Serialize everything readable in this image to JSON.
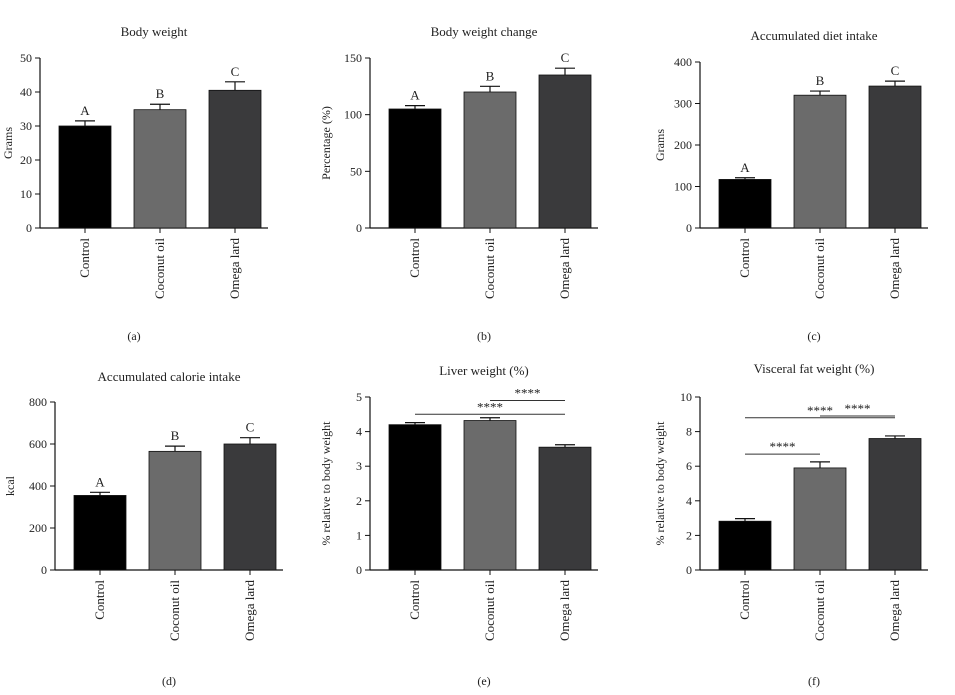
{
  "chart_data": [
    {
      "type": "bar",
      "panel_label": "(a)",
      "title": "Body weight",
      "ylabel": "Grams",
      "ylim": [
        0,
        50
      ],
      "yticks": [
        0,
        10,
        20,
        30,
        40,
        50
      ],
      "categories": [
        "Control",
        "Coconut oil",
        "Omega lard"
      ],
      "values": [
        30,
        34.8,
        40.5
      ],
      "errors": [
        1.5,
        1.6,
        2.5
      ],
      "letters": [
        "A",
        "B",
        "C"
      ],
      "significance": []
    },
    {
      "type": "bar",
      "panel_label": "(b)",
      "title": "Body weight change",
      "ylabel": "Percentage (%)",
      "ylim": [
        0,
        150
      ],
      "yticks": [
        0,
        50,
        100,
        150
      ],
      "categories": [
        "Control",
        "Coconut oil",
        "Omega lard"
      ],
      "values": [
        105,
        120,
        135
      ],
      "errors": [
        3,
        5,
        6
      ],
      "letters": [
        "A",
        "B",
        "C"
      ],
      "significance": []
    },
    {
      "type": "bar",
      "panel_label": "(c)",
      "title": "Accumulated diet intake",
      "ylabel": "Grams",
      "ylim": [
        0,
        400
      ],
      "yticks": [
        0,
        100,
        200,
        300,
        400
      ],
      "categories": [
        "Control",
        "Coconut oil",
        "Omega lard"
      ],
      "values": [
        117,
        320,
        342
      ],
      "errors": [
        4,
        10,
        12
      ],
      "letters": [
        "A",
        "B",
        "C"
      ],
      "significance": []
    },
    {
      "type": "bar",
      "panel_label": "(d)",
      "title": "Accumulated calorie intake",
      "ylabel": "kcal",
      "ylim": [
        0,
        800
      ],
      "yticks": [
        0,
        200,
        400,
        600,
        800
      ],
      "categories": [
        "Control",
        "Coconut oil",
        "Omega lard"
      ],
      "values": [
        355,
        565,
        600
      ],
      "errors": [
        15,
        25,
        30
      ],
      "letters": [
        "A",
        "B",
        "C"
      ],
      "significance": []
    },
    {
      "type": "bar",
      "panel_label": "(e)",
      "title": "Liver weight (%)",
      "ylabel": "% relative to body weight",
      "ylim": [
        0,
        5
      ],
      "yticks": [
        0,
        1,
        2,
        3,
        4,
        5
      ],
      "categories": [
        "Control",
        "Coconut oil",
        "Omega lard"
      ],
      "values": [
        4.2,
        4.32,
        3.55
      ],
      "errors": [
        0.06,
        0.08,
        0.07
      ],
      "letters": [],
      "significance": [
        {
          "from": 1,
          "to": 2,
          "y": 4.9,
          "label": "****"
        },
        {
          "from": 0,
          "to": 2,
          "y": 4.5,
          "label": "****"
        }
      ]
    },
    {
      "type": "bar",
      "panel_label": "(f)",
      "title": "Visceral fat weight (%)",
      "ylabel": "% relative to body weight",
      "ylim": [
        0,
        10
      ],
      "yticks": [
        0,
        2,
        4,
        6,
        8,
        10
      ],
      "categories": [
        "Control",
        "Coconut oil",
        "Omega lard"
      ],
      "values": [
        2.82,
        5.9,
        7.6
      ],
      "errors": [
        0.15,
        0.35,
        0.15
      ],
      "letters": [],
      "significance": [
        {
          "from": 1,
          "to": 2,
          "y": 8.9,
          "label": "****"
        },
        {
          "from": 0,
          "to": 2,
          "y": 8.8,
          "label": "****"
        },
        {
          "from": 0,
          "to": 1,
          "y": 6.7,
          "label": "****"
        }
      ]
    }
  ],
  "colors": {
    "bars": [
      "#000000",
      "#6b6b6b",
      "#3a3a3c"
    ],
    "axis": "#111111"
  }
}
